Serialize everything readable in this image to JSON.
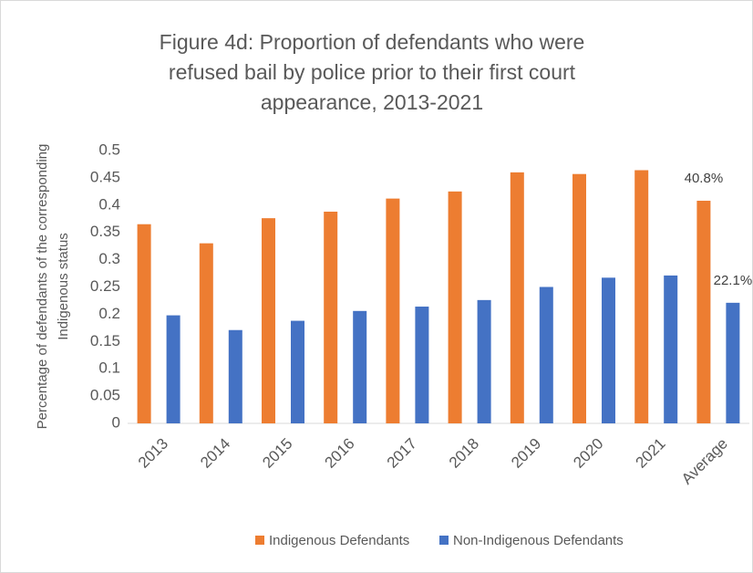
{
  "chart_data": {
    "type": "bar",
    "title": [
      "Figure 4d: Proportion of defendants who were",
      "refused bail by police prior to their first court",
      "appearance, 2013-2021"
    ],
    "ylabel": [
      "Percentage of defendants of the corresponding",
      "Indigenous status"
    ],
    "categories": [
      "2013",
      "2014",
      "2015",
      "2016",
      "2017",
      "2018",
      "2019",
      "2020",
      "2021",
      "Average"
    ],
    "series": [
      {
        "name": "Indigenous Defendants",
        "color": "#ed7d31",
        "values": [
          0.365,
          0.33,
          0.376,
          0.388,
          0.412,
          0.425,
          0.46,
          0.457,
          0.464,
          0.408
        ],
        "value_labels": [
          null,
          null,
          null,
          null,
          null,
          null,
          null,
          null,
          null,
          "40.8%"
        ]
      },
      {
        "name": "Non-Indigenous Defendants",
        "color": "#4472c4",
        "values": [
          0.198,
          0.171,
          0.188,
          0.206,
          0.214,
          0.226,
          0.25,
          0.267,
          0.271,
          0.221
        ],
        "value_labels": [
          null,
          null,
          null,
          null,
          null,
          null,
          null,
          null,
          null,
          "22.1%"
        ]
      }
    ],
    "ylim": [
      0,
      0.5
    ],
    "yticks": [
      0,
      0.05,
      0.1,
      0.15,
      0.2,
      0.25,
      0.3,
      0.35,
      0.4,
      0.45,
      0.5
    ],
    "grid": false,
    "legend": "bottom"
  }
}
